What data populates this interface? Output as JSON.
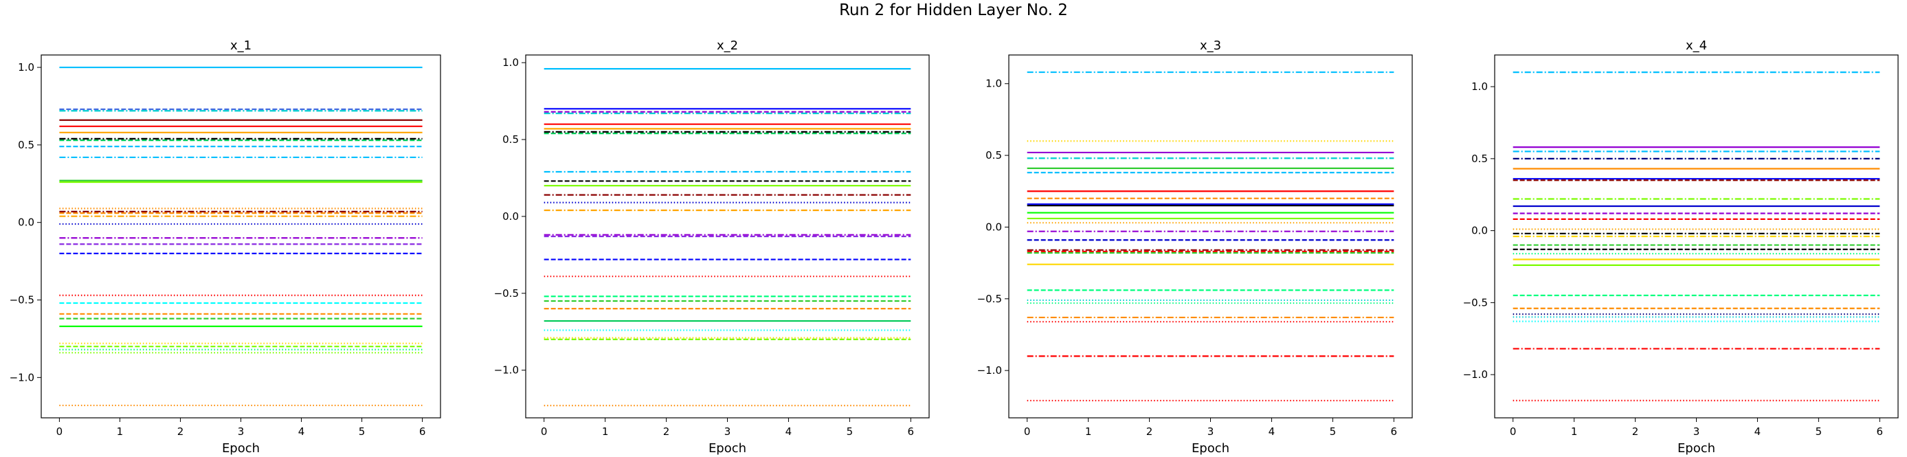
{
  "figure": {
    "title": "Run 2 for Hidden Layer No. 2"
  },
  "chart_data": [
    {
      "type": "line",
      "title": "x_1",
      "xlabel": "Epoch",
      "ylabel": "",
      "x": [
        0,
        1,
        2,
        3,
        4,
        5,
        6
      ],
      "xticks": [
        0,
        1,
        2,
        3,
        4,
        5,
        6
      ],
      "yticks": [
        -1.0,
        -0.5,
        0.0,
        0.5,
        1.0
      ],
      "ytick_labels": [
        "−1.0",
        "−0.5",
        "0.0",
        "0.5",
        "1.0"
      ],
      "xlim": [
        -0.3,
        6.3
      ],
      "ylim": [
        -1.26,
        1.08
      ],
      "grid": false,
      "series": [
        {
          "value": 1.0,
          "color": "#00bfff",
          "style": "solid"
        },
        {
          "value": 0.73,
          "color": "#4169e1",
          "style": "dashed"
        },
        {
          "value": 0.72,
          "color": "#00ced1",
          "style": "dashdot"
        },
        {
          "value": 0.66,
          "color": "#8b0000",
          "style": "solid"
        },
        {
          "value": 0.62,
          "color": "#ff0000",
          "style": "solid"
        },
        {
          "value": 0.58,
          "color": "#ffa500",
          "style": "solid"
        },
        {
          "value": 0.54,
          "color": "#000000",
          "style": "dashdot"
        },
        {
          "value": 0.53,
          "color": "#00c957",
          "style": "dashed"
        },
        {
          "value": 0.49,
          "color": "#00bfff",
          "style": "dashed"
        },
        {
          "value": 0.42,
          "color": "#00bfff",
          "style": "dashdot"
        },
        {
          "value": 0.27,
          "color": "#32cd32",
          "style": "solid"
        },
        {
          "value": 0.26,
          "color": "#7cfc00",
          "style": "solid"
        },
        {
          "value": 0.09,
          "color": "#ff8c00",
          "style": "dotted"
        },
        {
          "value": 0.07,
          "color": "#8b0000",
          "style": "dashdot"
        },
        {
          "value": 0.06,
          "color": "#ff8c00",
          "style": "dashed"
        },
        {
          "value": 0.04,
          "color": "#ffa500",
          "style": "dashdot"
        },
        {
          "value": -0.01,
          "color": "#0000cd",
          "style": "dotted"
        },
        {
          "value": -0.1,
          "color": "#9400d3",
          "style": "dashdot"
        },
        {
          "value": -0.14,
          "color": "#8a2be2",
          "style": "dashed"
        },
        {
          "value": -0.2,
          "color": "#0000ff",
          "style": "dashed"
        },
        {
          "value": -0.47,
          "color": "#ff0000",
          "style": "dotted"
        },
        {
          "value": -0.52,
          "color": "#00ffff",
          "style": "dashed"
        },
        {
          "value": -0.59,
          "color": "#ff8c00",
          "style": "dashed"
        },
        {
          "value": -0.62,
          "color": "#32cd32",
          "style": "dashed"
        },
        {
          "value": -0.67,
          "color": "#00ff00",
          "style": "solid"
        },
        {
          "value": -0.78,
          "color": "#ffd700",
          "style": "dotted"
        },
        {
          "value": -0.8,
          "color": "#7cfc00",
          "style": "dashed"
        },
        {
          "value": -0.82,
          "color": "#00ff7f",
          "style": "dotted"
        },
        {
          "value": -0.84,
          "color": "#7fff00",
          "style": "dotted"
        },
        {
          "value": -1.18,
          "color": "#ff8c00",
          "style": "dotted"
        }
      ]
    },
    {
      "type": "line",
      "title": "x_2",
      "xlabel": "Epoch",
      "ylabel": "",
      "x": [
        0,
        1,
        2,
        3,
        4,
        5,
        6
      ],
      "xticks": [
        0,
        1,
        2,
        3,
        4,
        5,
        6
      ],
      "yticks": [
        -1.0,
        -0.5,
        0.0,
        0.5,
        1.0
      ],
      "ytick_labels": [
        "−1.0",
        "−0.5",
        "0.0",
        "0.5",
        "1.0"
      ],
      "xlim": [
        -0.3,
        6.3
      ],
      "ylim": [
        -1.31,
        1.05
      ],
      "grid": false,
      "series": [
        {
          "value": 0.96,
          "color": "#00bfff",
          "style": "solid"
        },
        {
          "value": 0.7,
          "color": "#0000ff",
          "style": "solid"
        },
        {
          "value": 0.68,
          "color": "#9400d3",
          "style": "dashed"
        },
        {
          "value": 0.67,
          "color": "#00ced1",
          "style": "dashdot"
        },
        {
          "value": 0.6,
          "color": "#ff0000",
          "style": "solid"
        },
        {
          "value": 0.57,
          "color": "#ffa500",
          "style": "solid"
        },
        {
          "value": 0.55,
          "color": "#000000",
          "style": "dashdot"
        },
        {
          "value": 0.54,
          "color": "#00c957",
          "style": "dashed"
        },
        {
          "value": 0.29,
          "color": "#00bfff",
          "style": "dashdot"
        },
        {
          "value": 0.23,
          "color": "#000000",
          "style": "dashed"
        },
        {
          "value": 0.2,
          "color": "#7cfc00",
          "style": "solid"
        },
        {
          "value": 0.14,
          "color": "#8b0000",
          "style": "dashdot"
        },
        {
          "value": 0.09,
          "color": "#0000cd",
          "style": "dotted"
        },
        {
          "value": 0.04,
          "color": "#ffa500",
          "style": "dashdot"
        },
        {
          "value": -0.12,
          "color": "#9400d3",
          "style": "dashdot"
        },
        {
          "value": -0.13,
          "color": "#8a2be2",
          "style": "dashed"
        },
        {
          "value": -0.28,
          "color": "#0000ff",
          "style": "dashed"
        },
        {
          "value": -0.39,
          "color": "#ff0000",
          "style": "dotted"
        },
        {
          "value": -0.52,
          "color": "#00ff7f",
          "style": "dashed"
        },
        {
          "value": -0.55,
          "color": "#32cd32",
          "style": "dashed"
        },
        {
          "value": -0.6,
          "color": "#ff8c00",
          "style": "dashed"
        },
        {
          "value": -0.68,
          "color": "#00c957",
          "style": "solid"
        },
        {
          "value": -0.74,
          "color": "#00ffff",
          "style": "dotted"
        },
        {
          "value": -0.79,
          "color": "#ffd700",
          "style": "dotted"
        },
        {
          "value": -0.8,
          "color": "#7cfc00",
          "style": "dashed"
        },
        {
          "value": -1.23,
          "color": "#ff8c00",
          "style": "dotted"
        }
      ]
    },
    {
      "type": "line",
      "title": "x_3",
      "xlabel": "Epoch",
      "ylabel": "",
      "x": [
        0,
        1,
        2,
        3,
        4,
        5,
        6
      ],
      "xticks": [
        0,
        1,
        2,
        3,
        4,
        5,
        6
      ],
      "yticks": [
        -1.0,
        -0.5,
        0.0,
        0.5,
        1.0
      ],
      "ytick_labels": [
        "−1.0",
        "−0.5",
        "0.0",
        "0.5",
        "1.0"
      ],
      "xlim": [
        -0.3,
        6.3
      ],
      "ylim": [
        -1.33,
        1.2
      ],
      "grid": false,
      "series": [
        {
          "value": 1.08,
          "color": "#00bfff",
          "style": "dashdot"
        },
        {
          "value": 0.6,
          "color": "#ffd700",
          "style": "dotted"
        },
        {
          "value": 0.52,
          "color": "#9400d3",
          "style": "solid"
        },
        {
          "value": 0.48,
          "color": "#00ced1",
          "style": "dashdot"
        },
        {
          "value": 0.41,
          "color": "#32cd32",
          "style": "solid"
        },
        {
          "value": 0.38,
          "color": "#00bfff",
          "style": "dashed"
        },
        {
          "value": 0.25,
          "color": "#ff0000",
          "style": "solid"
        },
        {
          "value": 0.2,
          "color": "#ff8c00",
          "style": "dashed"
        },
        {
          "value": 0.16,
          "color": "#0000ff",
          "style": "solid"
        },
        {
          "value": 0.15,
          "color": "#000000",
          "style": "solid"
        },
        {
          "value": 0.1,
          "color": "#00ff00",
          "style": "solid"
        },
        {
          "value": 0.06,
          "color": "#7cfc00",
          "style": "solid"
        },
        {
          "value": 0.03,
          "color": "#ffa500",
          "style": "dotted"
        },
        {
          "value": -0.03,
          "color": "#9400d3",
          "style": "dashdot"
        },
        {
          "value": -0.09,
          "color": "#0000cd",
          "style": "dashed"
        },
        {
          "value": -0.16,
          "color": "#8b0000",
          "style": "dashdot"
        },
        {
          "value": -0.17,
          "color": "#ff0000",
          "style": "dashed"
        },
        {
          "value": -0.18,
          "color": "#32cd32",
          "style": "dashed"
        },
        {
          "value": -0.26,
          "color": "#ffd700",
          "style": "solid"
        },
        {
          "value": -0.44,
          "color": "#00ff7f",
          "style": "dashed"
        },
        {
          "value": -0.51,
          "color": "#00ced1",
          "style": "dotted"
        },
        {
          "value": -0.53,
          "color": "#00ff7f",
          "style": "dotted"
        },
        {
          "value": -0.63,
          "color": "#ff8c00",
          "style": "dashdot"
        },
        {
          "value": -0.66,
          "color": "#ff0000",
          "style": "dotted"
        },
        {
          "value": -0.9,
          "color": "#ff0000",
          "style": "dashdot"
        },
        {
          "value": -1.21,
          "color": "#ff0000",
          "style": "dotted"
        }
      ]
    },
    {
      "type": "line",
      "title": "x_4",
      "xlabel": "Epoch",
      "ylabel": "",
      "x": [
        0,
        1,
        2,
        3,
        4,
        5,
        6
      ],
      "xticks": [
        0,
        1,
        2,
        3,
        4,
        5,
        6
      ],
      "yticks": [
        -1.0,
        -0.5,
        0.0,
        0.5,
        1.0
      ],
      "ytick_labels": [
        "−1.0",
        "−0.5",
        "0.0",
        "0.5",
        "1.0"
      ],
      "xlim": [
        -0.3,
        6.3
      ],
      "ylim": [
        -1.3,
        1.22
      ],
      "grid": false,
      "series": [
        {
          "value": 1.1,
          "color": "#00bfff",
          "style": "dashdot"
        },
        {
          "value": 0.58,
          "color": "#9400d3",
          "style": "solid"
        },
        {
          "value": 0.55,
          "color": "#00bfff",
          "style": "dashdot"
        },
        {
          "value": 0.5,
          "color": "#000080",
          "style": "dashdot"
        },
        {
          "value": 0.43,
          "color": "#ff8c00",
          "style": "solid"
        },
        {
          "value": 0.36,
          "color": "#0000ff",
          "style": "solid"
        },
        {
          "value": 0.35,
          "color": "#8b0000",
          "style": "dashed"
        },
        {
          "value": 0.22,
          "color": "#7cfc00",
          "style": "dashdot"
        },
        {
          "value": 0.17,
          "color": "#0000cd",
          "style": "solid"
        },
        {
          "value": 0.12,
          "color": "#9400d3",
          "style": "dashed"
        },
        {
          "value": 0.08,
          "color": "#ff0000",
          "style": "dashed"
        },
        {
          "value": 0.01,
          "color": "#ffa500",
          "style": "dotted"
        },
        {
          "value": -0.02,
          "color": "#000000",
          "style": "dashdot"
        },
        {
          "value": -0.04,
          "color": "#ffd700",
          "style": "dashdot"
        },
        {
          "value": -0.1,
          "color": "#32cd32",
          "style": "dashed"
        },
        {
          "value": -0.13,
          "color": "#000000",
          "style": "dashed"
        },
        {
          "value": -0.16,
          "color": "#00ff7f",
          "style": "dotted"
        },
        {
          "value": -0.2,
          "color": "#ffd700",
          "style": "solid"
        },
        {
          "value": -0.24,
          "color": "#7cfc00",
          "style": "solid"
        },
        {
          "value": -0.45,
          "color": "#00ff7f",
          "style": "dashed"
        },
        {
          "value": -0.54,
          "color": "#ff8c00",
          "style": "dashed"
        },
        {
          "value": -0.58,
          "color": "#000080",
          "style": "dotted"
        },
        {
          "value": -0.6,
          "color": "#00ced1",
          "style": "dotted"
        },
        {
          "value": -0.63,
          "color": "#00ffff",
          "style": "dotted"
        },
        {
          "value": -0.82,
          "color": "#ff0000",
          "style": "dashdot"
        },
        {
          "value": -1.18,
          "color": "#ff0000",
          "style": "dotted"
        }
      ]
    }
  ]
}
